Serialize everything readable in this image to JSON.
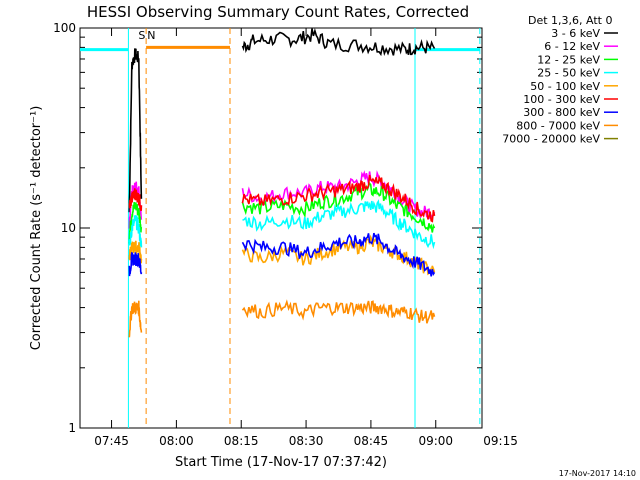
{
  "chart_data": {
    "type": "line",
    "title": "HESSI Observing Summary Count Rates, Corrected",
    "xlabel": "Start Time (17-Nov-17 07:37:42)",
    "ylabel": "Corrected Count Rate (s⁻¹ detector⁻¹)",
    "yscale": "log",
    "ylim": [
      1,
      100
    ],
    "xlim_minutes": [
      0,
      93
    ],
    "x_ticks": [
      {
        "label": "07:45",
        "t": 7.3
      },
      {
        "label": "08:00",
        "t": 22.3
      },
      {
        "label": "08:15",
        "t": 37.3
      },
      {
        "label": "08:30",
        "t": 52.3
      },
      {
        "label": "08:45",
        "t": 67.3
      },
      {
        "label": "09:00",
        "t": 82.3
      },
      {
        "label": "09:15",
        "t": 97.3
      }
    ],
    "y_ticks": [
      {
        "label": "1",
        "v": 1
      },
      {
        "label": "10",
        "v": 10
      },
      {
        "label": "100",
        "v": 100
      }
    ],
    "legend_title": "Det 1,3,6, Att 0",
    "legend_position": "right",
    "grid": false,
    "series": [
      {
        "name": "3 - 6 keV",
        "color": "#000000",
        "segments": [
          {
            "x": [
              11.4,
              12.0,
              12.8,
              13.6,
              14.2
            ],
            "y": [
              12,
              66,
              74,
              70,
              14
            ]
          },
          {
            "x": [
              37.6,
              40,
              45,
              50,
              54,
              58,
              65,
              70,
              75,
              78,
              82
            ],
            "y": [
              80,
              86,
              88,
              88,
              92,
              83,
              82,
              80,
              78,
              80,
              79
            ]
          }
        ]
      },
      {
        "name": "6 - 12 keV",
        "color": "#ff00ff",
        "segments": [
          {
            "x": [
              11.4,
              12.0,
              12.8,
              13.6,
              14.2
            ],
            "y": [
              10,
              15,
              16,
              15,
              11
            ]
          },
          {
            "x": [
              37.6,
              42,
              47,
              52,
              56,
              60,
              64,
              67,
              70,
              73,
              76,
              79,
              82
            ],
            "y": [
              15,
              14,
              15,
              15,
              16,
              16,
              17,
              18,
              17,
              15,
              13,
              12,
              12
            ]
          }
        ]
      },
      {
        "name": "12 - 25 keV",
        "color": "#00ff00",
        "segments": [
          {
            "x": [
              11.4,
              12.0,
              12.8,
              13.6,
              14.2
            ],
            "y": [
              9,
              12,
              13,
              12,
              10
            ]
          },
          {
            "x": [
              37.6,
              42,
              47,
              52,
              56,
              60,
              64,
              67,
              70,
              73,
              76,
              79,
              82
            ],
            "y": [
              13,
              12.5,
              13,
              12.5,
              13.5,
              14,
              15,
              15.5,
              15,
              13,
              12,
              11,
              10
            ]
          }
        ]
      },
      {
        "name": "25 - 50 keV",
        "color": "#00ffff",
        "segments": [
          {
            "x": [
              11.4,
              12.0,
              12.8,
              13.6,
              14.2
            ],
            "y": [
              8,
              10,
              11,
              10,
              8
            ]
          },
          {
            "x": [
              37.6,
              42,
              47,
              52,
              56,
              60,
              64,
              67,
              70,
              73,
              76,
              79,
              82
            ],
            "y": [
              11,
              10.5,
              11,
              10.5,
              11.5,
              12,
              12.5,
              13,
              12.5,
              11,
              10,
              9,
              8.5
            ]
          }
        ]
      },
      {
        "name": "50 - 100 keV",
        "color": "#ffa500",
        "segments": [
          {
            "x": [
              11.4,
              12.0,
              12.8,
              13.6,
              14.2
            ],
            "y": [
              7,
              8,
              8,
              8,
              7
            ]
          },
          {
            "x": [
              37.6,
              42,
              47,
              52,
              56,
              60,
              64,
              67,
              70,
              73,
              76,
              79,
              82
            ],
            "y": [
              7.5,
              7,
              7.5,
              7,
              7.5,
              8,
              8,
              8.5,
              8,
              7.5,
              7,
              6.5,
              6
            ]
          }
        ]
      },
      {
        "name": "100 - 300 keV",
        "color": "#ff0000",
        "segments": [
          {
            "x": [
              11.4,
              12.0,
              12.8,
              13.6,
              14.2
            ],
            "y": [
              13,
              14,
              15,
              14,
              13
            ]
          },
          {
            "x": [
              37.6,
              42,
              47,
              52,
              56,
              60,
              64,
              67,
              70,
              73,
              76,
              79,
              82
            ],
            "y": [
              14,
              13.5,
              14,
              14.5,
              15,
              15.5,
              16,
              17,
              16.5,
              15,
              13.5,
              12,
              11.5
            ]
          }
        ]
      },
      {
        "name": "300 - 800 keV",
        "color": "#0000ff",
        "segments": [
          {
            "x": [
              11.4,
              12.0,
              12.8,
              13.6,
              14.2
            ],
            "y": [
              6,
              7,
              7,
              7,
              6
            ]
          },
          {
            "x": [
              37.6,
              42,
              47,
              52,
              56,
              60,
              64,
              67,
              70,
              73,
              76,
              79,
              82
            ],
            "y": [
              8.5,
              8,
              8,
              7.5,
              8,
              8.5,
              8.5,
              9,
              8.5,
              7.5,
              7,
              6.5,
              6
            ]
          }
        ]
      },
      {
        "name": "800 - 7000 keV",
        "color": "#ff8c00",
        "segments": [
          {
            "x": [
              11.4,
              12.0,
              12.8,
              13.6,
              14.2
            ],
            "y": [
              3,
              4,
              4,
              4,
              3
            ]
          },
          {
            "x": [
              37.6,
              42,
              47,
              52,
              56,
              60,
              64,
              67,
              70,
              73,
              76,
              79,
              82
            ],
            "y": [
              4,
              3.8,
              4,
              3.8,
              4,
              4,
              4,
              4,
              4,
              3.8,
              3.8,
              3.6,
              3.6
            ]
          }
        ]
      },
      {
        "name": "7000 - 20000 keV",
        "color": "#808000",
        "segments": []
      }
    ],
    "annotations": {
      "markers": [
        {
          "label": "S",
          "t": 14.3,
          "color": "#ff8c00"
        },
        {
          "label": "N",
          "t": 16.5,
          "color": "#00ffff"
        }
      ],
      "orange_bar": {
        "t0": 15.3,
        "t1": 34.7,
        "value": 80
      },
      "cyan_bars": [
        {
          "t0": 0,
          "t1": 11.2,
          "value": 78
        },
        {
          "t0": 77.5,
          "t1": 92.5,
          "value": 78
        }
      ],
      "vlines": [
        {
          "t": 11.2,
          "color": "#00ffff",
          "style": "solid"
        },
        {
          "t": 15.3,
          "color": "#ff8c00",
          "style": "dashed"
        },
        {
          "t": 34.7,
          "color": "#ff8c00",
          "style": "dashed"
        },
        {
          "t": 77.5,
          "color": "#00ffff",
          "style": "solid"
        },
        {
          "t": 92.5,
          "color": "#00ffff",
          "style": "dashed"
        }
      ]
    },
    "timestamp": "17-Nov-2017 14:10"
  }
}
